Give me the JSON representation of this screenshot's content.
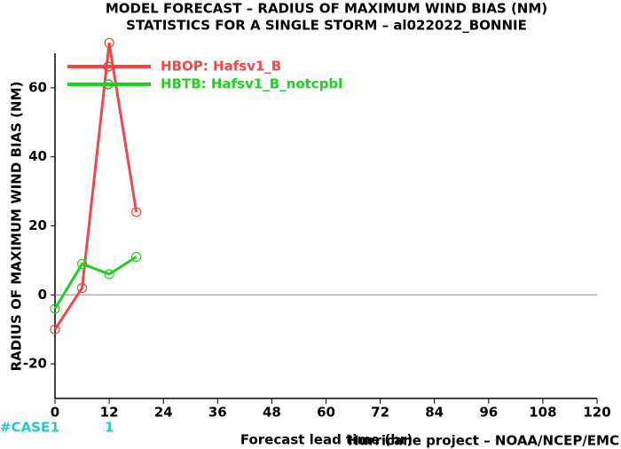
{
  "chart_data": {
    "type": "line",
    "title": [
      "MODEL FORECAST – RADIUS OF MAXIMUM WIND BIAS (NM)",
      "STATISTICS FOR A SINGLE STORM – al022022_BONNIE"
    ],
    "x_label": "Forecast lead time (hr)",
    "y_label": "RADIUS OF MAXIMUM WIND BIAS (NM)",
    "footer": "Hurricane project – NOAA/NCEP/EMC",
    "x": [
      0,
      6,
      12,
      18
    ],
    "series": [
      {
        "name": "HBOP: Hafsv1_B",
        "color": "#f04848",
        "values": [
          -10,
          2,
          73,
          24
        ]
      },
      {
        "name": "HBTB: Hafsv1_B_notcpbl",
        "color": "#20d020",
        "values": [
          -4,
          9,
          6,
          11
        ]
      }
    ],
    "xlim": [
      0,
      120
    ],
    "xticks": [
      0,
      12,
      24,
      36,
      48,
      60,
      72,
      84,
      96,
      108,
      120
    ],
    "ylim": [
      -30,
      70
    ],
    "yticks": [
      -20,
      0,
      20,
      40,
      60
    ],
    "zero_line": true,
    "cases": {
      "label": "#CASE",
      "color": "#20c8c8",
      "x": [
        0,
        12
      ],
      "values": [
        1,
        1
      ]
    }
  }
}
